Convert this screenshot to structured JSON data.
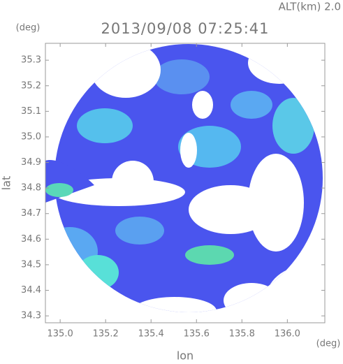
{
  "chart_data": {
    "type": "map",
    "title": "2013/09/08 07:25:41",
    "subtitle": "ALT(km) 2.0",
    "x_label": "lon",
    "y_label": "lat",
    "x_unit": "(deg)",
    "y_unit": "(deg)",
    "xlim": [
      134.935,
      136.165
    ],
    "ylim": [
      34.273,
      35.366
    ],
    "xticks": [
      {
        "value": 135,
        "label": "135.0"
      },
      135.2,
      135.4,
      135.6,
      135.8,
      {
        "value": 136,
        "label": "136.0"
      }
    ],
    "yticks": [
      34.3,
      34.4,
      34.5,
      34.6,
      34.7,
      34.8,
      34.9,
      {
        "value": 35,
        "label": "35.0"
      },
      35.1,
      35.2,
      35.3
    ],
    "grid": false
  }
}
